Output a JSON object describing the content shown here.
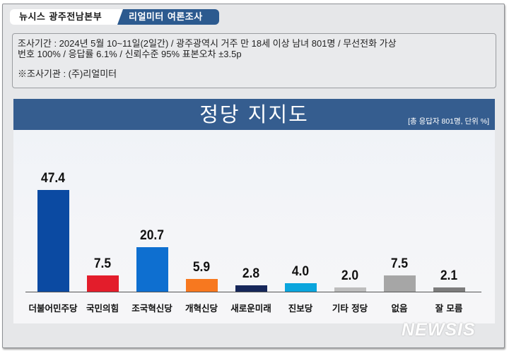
{
  "header": {
    "source_label": "뉴시스 광주전남본부",
    "poll_label": "리얼미터 여론조사"
  },
  "info": {
    "line1": "조사기간 : 2024년 5월 10~11일(2일간) / 광주광역시 거주 만 18세 이상 남녀 801명 / 무선전화 가상",
    "line2": "번호 100% / 응답률 6.1% / 신뢰수준 95% 표본오차 ±3.5p",
    "institution": "※조사기관 : (주)리얼미터"
  },
  "chart_data": {
    "type": "bar",
    "title": "정당 지지도",
    "subtitle": "[총 응답자 801명, 단위 %]",
    "xlabel": "",
    "ylabel": "",
    "categories": [
      "더불어민주당",
      "국민의힘",
      "조국혁신당",
      "개혁신당",
      "새로운미래",
      "진보당",
      "기타 정당",
      "없음",
      "잘 모름"
    ],
    "values": [
      47.4,
      7.5,
      20.7,
      5.9,
      2.8,
      4.0,
      2.0,
      7.5,
      2.1
    ],
    "value_labels": [
      "47.4",
      "7.5",
      "20.7",
      "5.9",
      "2.8",
      "4.0",
      "2.0",
      "7.5",
      "2.1"
    ],
    "colors": [
      "#0b4aa2",
      "#e31d2b",
      "#0e6fd0",
      "#f7781f",
      "#16275a",
      "#0aa5dd",
      "#bdbdbd",
      "#a6a6a6",
      "#7c7c7c"
    ],
    "ylim": [
      0,
      50
    ],
    "grid": false,
    "legend": "none"
  },
  "watermark": "NEWSIS"
}
